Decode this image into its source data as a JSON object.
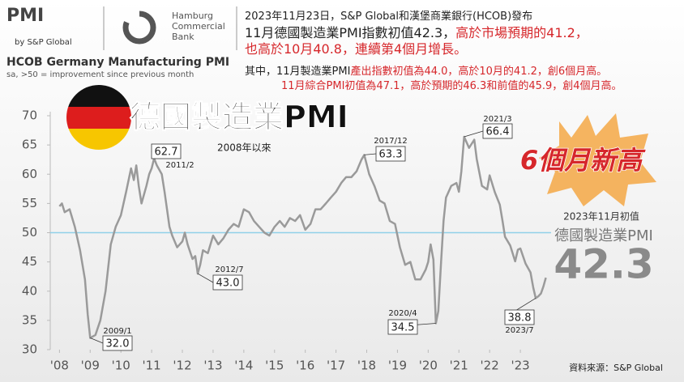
{
  "header": {
    "logo": "PMI",
    "logo_sub": "by S&P Global",
    "bank": [
      "Hamburg",
      "Commercial",
      "Bank"
    ],
    "lines": [
      [
        {
          "text": "2023年11月23日，S&P Global和漢堡商業銀行(HCOB)發布",
          "color": "#222"
        }
      ],
      [
        {
          "text": "11月德國製造業PMI指數初值42.3，",
          "color": "#222"
        },
        {
          "text": "高於市場預期的41.2，",
          "color": "#d6272b"
        }
      ],
      [
        {
          "text": "也高於10月40.8，連續第4個月增長。",
          "color": "#d6272b"
        }
      ],
      [
        {
          "text": "其中，11月製造業PMI",
          "color": "#222"
        },
        {
          "text": "產出指數初值為44.0，高於10月的41.2，創6個月高。",
          "color": "#d6272b"
        }
      ],
      [
        {
          "text": "11月綜合PMI初值為47.1，高於預期的46.3和前值的45.9，創4個月高。",
          "color": "#d6272b"
        }
      ]
    ]
  },
  "chart_data": {
    "type": "line",
    "title": "HCOB Germany Manufacturing PMI",
    "subtitle": "sa, >50 = improvement since previous month",
    "headline": "德國製造業PMI",
    "period_note": "2008年以來",
    "badge": "6個月新高",
    "callout": {
      "note": "2023年11月初值",
      "label": "德國製造業PMI",
      "value": 42.3
    },
    "source": "資料來源：S&P Global",
    "xlim": [
      2007.7,
      2024.0
    ],
    "ylim": [
      30,
      70
    ],
    "xticks": [
      {
        "value": 2008,
        "label": "'08"
      },
      {
        "value": 2009,
        "label": "'09"
      },
      {
        "value": 2010,
        "label": "'10"
      },
      {
        "value": 2011,
        "label": "'11"
      },
      {
        "value": 2012,
        "label": "'12"
      },
      {
        "value": 2013,
        "label": "'13"
      },
      {
        "value": 2014,
        "label": "'14"
      },
      {
        "value": 2015,
        "label": "'15"
      },
      {
        "value": 2016,
        "label": "'16"
      },
      {
        "value": 2017,
        "label": "'17"
      },
      {
        "value": 2018,
        "label": "'18"
      },
      {
        "value": 2019,
        "label": "'19"
      },
      {
        "value": 2020,
        "label": "'20"
      },
      {
        "value": 2021,
        "label": "'21"
      },
      {
        "value": 2022,
        "label": "'22"
      },
      {
        "value": 2023,
        "label": "'23"
      }
    ],
    "yticks": [
      30,
      35,
      40,
      45,
      50,
      55,
      60,
      65,
      70
    ],
    "reference_line": {
      "value": 50,
      "color": "#8fd0e8"
    },
    "series": [
      {
        "color": "#9a9a9a",
        "x": [
          2008.0,
          2008.08,
          2008.17,
          2008.33,
          2008.5,
          2008.67,
          2008.83,
          2008.92,
          2009.0,
          2009.17,
          2009.33,
          2009.5,
          2009.67,
          2009.83,
          2010.0,
          2010.17,
          2010.33,
          2010.42,
          2010.5,
          2010.58,
          2010.67,
          2010.83,
          2010.92,
          2011.0,
          2011.08,
          2011.17,
          2011.33,
          2011.42,
          2011.5,
          2011.58,
          2011.67,
          2011.83,
          2012.0,
          2012.08,
          2012.17,
          2012.33,
          2012.42,
          2012.5,
          2012.58,
          2012.67,
          2012.83,
          2013.0,
          2013.17,
          2013.33,
          2013.5,
          2013.67,
          2013.83,
          2014.0,
          2014.17,
          2014.33,
          2014.5,
          2014.67,
          2014.83,
          2015.0,
          2015.17,
          2015.33,
          2015.5,
          2015.67,
          2015.83,
          2016.0,
          2016.17,
          2016.33,
          2016.5,
          2016.67,
          2016.83,
          2017.0,
          2017.17,
          2017.33,
          2017.5,
          2017.67,
          2017.83,
          2017.92,
          2018.08,
          2018.25,
          2018.42,
          2018.58,
          2018.75,
          2018.92,
          2019.08,
          2019.25,
          2019.42,
          2019.58,
          2019.75,
          2019.92,
          2020.0,
          2020.08,
          2020.17,
          2020.25,
          2020.33,
          2020.42,
          2020.5,
          2020.58,
          2020.75,
          2020.92,
          2021.0,
          2021.08,
          2021.17,
          2021.33,
          2021.5,
          2021.58,
          2021.75,
          2021.92,
          2022.0,
          2022.17,
          2022.33,
          2022.42,
          2022.5,
          2022.67,
          2022.83,
          2022.92,
          2023.0,
          2023.17,
          2023.33,
          2023.42,
          2023.5,
          2023.58,
          2023.67,
          2023.75,
          2023.83
        ],
        "values": [
          54.5,
          55,
          53.5,
          54,
          51,
          47,
          42,
          36,
          32,
          32.5,
          35,
          40,
          48,
          51,
          53,
          57,
          61,
          59,
          61.5,
          58,
          55,
          58,
          60,
          61,
          62.7,
          61.5,
          60,
          57,
          54,
          51,
          49.5,
          47.5,
          48.5,
          50,
          48,
          45.5,
          46,
          43,
          44.5,
          47,
          46.5,
          49.5,
          48,
          49,
          50.5,
          51.5,
          51,
          54,
          53.5,
          52,
          51,
          50,
          49.5,
          51,
          52,
          51,
          52.5,
          52,
          53,
          50.5,
          51.5,
          54,
          54,
          55,
          56,
          57,
          58.5,
          59.5,
          59.5,
          60.5,
          62.5,
          63.3,
          60,
          58,
          55.5,
          55,
          52,
          51.5,
          47.5,
          44.5,
          45,
          42,
          42,
          43.7,
          45,
          48,
          45.4,
          34.5,
          36.6,
          45,
          52,
          56,
          58,
          58.5,
          57,
          60.5,
          66.4,
          64.5,
          65.9,
          62.6,
          58,
          57.4,
          59.8,
          56.9,
          54.8,
          52,
          49.3,
          47.8,
          45.1,
          47.1,
          47.3,
          44.7,
          43.2,
          40.6,
          38.8,
          39.1,
          39.6,
          40.8,
          42.3
        ]
      }
    ],
    "annotations": [
      {
        "date": "2011/2",
        "value": 62.7
      },
      {
        "date": "2009/1",
        "value": 32,
        "label": "32.0"
      },
      {
        "date": "2012/7",
        "value": 43,
        "label": "43.0"
      },
      {
        "date": "2017/12",
        "value": 63.3
      },
      {
        "date": "2020/4",
        "value": 34.5
      },
      {
        "date": "2021/3",
        "value": 66.4
      },
      {
        "date": "2023/7",
        "value": 38.8
      }
    ]
  }
}
